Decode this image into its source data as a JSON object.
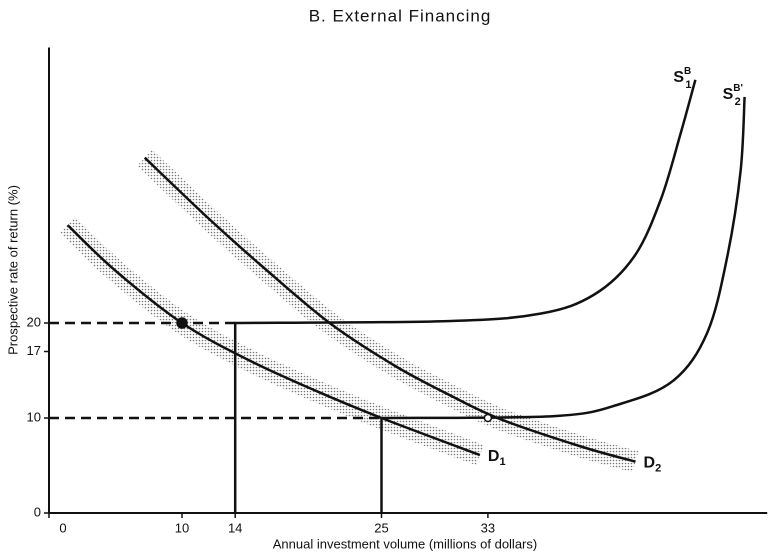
{
  "chart_data": {
    "type": "line",
    "title": "B. External Financing",
    "xlabel": "Annual investment volume (millions of dollars)",
    "ylabel": "Prospective rate of return (%)",
    "xlim": [
      0,
      54
    ],
    "ylim": [
      0,
      49
    ],
    "xticks": [
      0,
      10,
      14,
      25,
      33
    ],
    "yticks": [
      0,
      10,
      17,
      20
    ],
    "color": "#111",
    "series": [
      {
        "label": {
          "main": "D",
          "sub": "1"
        },
        "band": true,
        "x": [
          1.4,
          5,
          10,
          15,
          20,
          25,
          32.4
        ],
        "values": [
          30.3,
          25.5,
          20,
          16.1,
          12.9,
          10,
          6.1
        ]
      },
      {
        "label": {
          "main": "D",
          "sub": "2"
        },
        "band": true,
        "x": [
          7.2,
          12,
          16,
          21.1,
          26,
          30,
          33.9,
          40,
          44.1
        ],
        "values": [
          37.4,
          31,
          26,
          20,
          15.5,
          12.5,
          9.9,
          7,
          5.4
        ]
      },
      {
        "label": {
          "main": "S",
          "sub": "1",
          "sup": "B"
        },
        "x": [
          14,
          14,
          30,
          37,
          41,
          44,
          46,
          47.5,
          48.6
        ],
        "values": [
          0,
          20,
          20.2,
          21,
          23,
          27,
          33,
          40,
          45.6
        ]
      },
      {
        "label": {
          "main": "S",
          "sub": "2",
          "sup": "B'"
        },
        "x": [
          25,
          25,
          38,
          43,
          47,
          49.5,
          51,
          52,
          52.3
        ],
        "values": [
          0,
          10,
          10.2,
          11.5,
          14,
          19,
          27,
          36,
          43.8
        ]
      }
    ],
    "guides": [
      {
        "x": [
          0,
          14
        ],
        "values": [
          20,
          20
        ]
      },
      {
        "x": [
          0,
          25
        ],
        "values": [
          10,
          10
        ]
      }
    ],
    "points": [
      {
        "x": 10,
        "value": 20,
        "filled": true
      },
      {
        "x": 33,
        "value": 10,
        "filled": false
      }
    ]
  }
}
